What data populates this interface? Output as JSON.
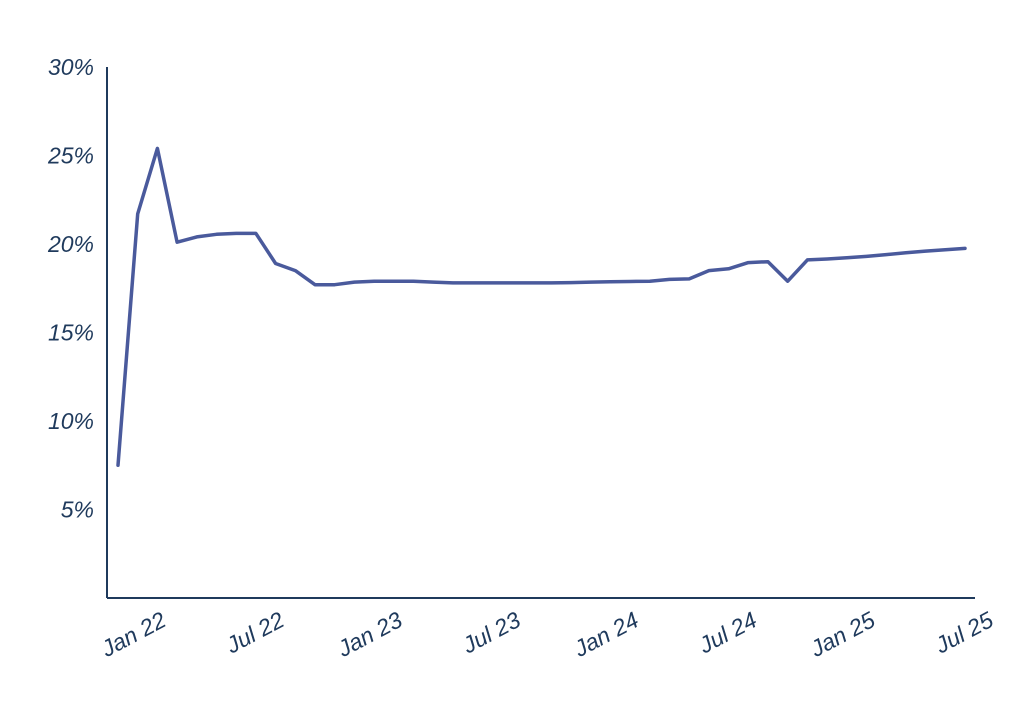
{
  "chart_data": {
    "type": "line",
    "title": "",
    "xlabel": "",
    "ylabel": "",
    "x_ticks": [
      "Jan 22",
      "Jul 22",
      "Jan 23",
      "Jul 23",
      "Jan 24",
      "Jul 24",
      "Jan 25",
      "Jul 25"
    ],
    "y_ticks": [
      "5%",
      "10%",
      "15%",
      "20%",
      "25%",
      "30%"
    ],
    "ylim": [
      0,
      30
    ],
    "xlim": [
      "2021-12",
      "2025-07"
    ],
    "grid": false,
    "legend": "none",
    "colors": {
      "line": "#4a5a9c",
      "axis": "#1f3a5c",
      "text": "#1f3a5c"
    },
    "series": [
      {
        "x": [
          "2021-12",
          "2022-01",
          "2022-02",
          "2022-03",
          "2022-04",
          "2022-05",
          "2022-06",
          "2022-07",
          "2022-08",
          "2022-09",
          "2022-10",
          "2022-11",
          "2022-12",
          "2023-01",
          "2023-02",
          "2023-03",
          "2023-04",
          "2023-05",
          "2023-06",
          "2023-07",
          "2023-08",
          "2023-09",
          "2023-10",
          "2023-11",
          "2023-12",
          "2024-01",
          "2024-02",
          "2024-03",
          "2024-04",
          "2024-05",
          "2024-06",
          "2024-07",
          "2024-08",
          "2024-09",
          "2024-10",
          "2024-11",
          "2024-12",
          "2025-01",
          "2025-02",
          "2025-03",
          "2025-04",
          "2025-05",
          "2025-06",
          "2025-07"
        ],
        "values": [
          7.5,
          21.7,
          25.4,
          20.1,
          20.4,
          20.55,
          20.6,
          20.6,
          18.9,
          18.5,
          17.7,
          17.7,
          17.85,
          17.9,
          17.9,
          17.9,
          17.85,
          17.8,
          17.8,
          17.8,
          17.8,
          17.8,
          17.8,
          17.82,
          17.85,
          17.87,
          17.88,
          17.9,
          18.0,
          18.03,
          18.5,
          18.6,
          18.95,
          19.0,
          17.9,
          19.1,
          19.15,
          19.22,
          19.3,
          19.4,
          19.5,
          19.6,
          19.67,
          19.75
        ]
      }
    ]
  }
}
